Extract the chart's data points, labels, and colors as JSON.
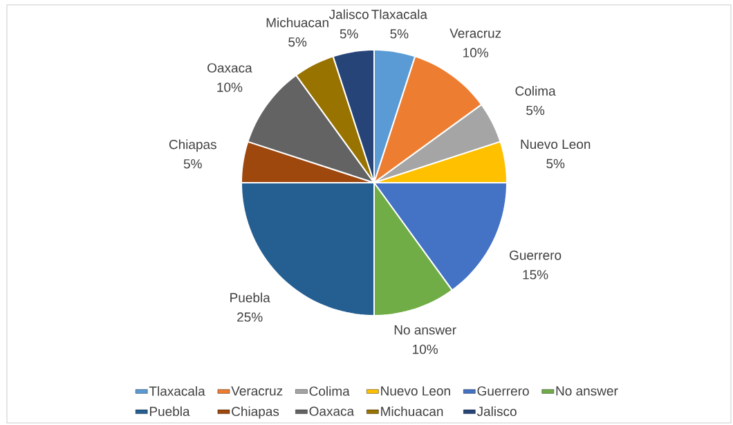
{
  "chart_data": {
    "type": "pie",
    "categories": [
      "Tlaxacala",
      "Veracruz",
      "Colima",
      "Nuevo Leon",
      "Guerrero",
      "No answer",
      "Puebla",
      "Chiapas",
      "Oaxaca",
      "Michuacan",
      "Jalisco"
    ],
    "values": [
      5,
      10,
      5,
      5,
      15,
      10,
      25,
      5,
      10,
      5,
      5
    ],
    "value_labels": [
      "5%",
      "10%",
      "5%",
      "5%",
      "15%",
      "10%",
      "25%",
      "5%",
      "10%",
      "5%",
      "5%"
    ],
    "colors": [
      "#5b9bd5",
      "#ed7d31",
      "#a5a5a5",
      "#ffc000",
      "#4472c4",
      "#70ad47",
      "#255e91",
      "#9e480e",
      "#636363",
      "#997300",
      "#264478"
    ],
    "legend": "bottom"
  }
}
